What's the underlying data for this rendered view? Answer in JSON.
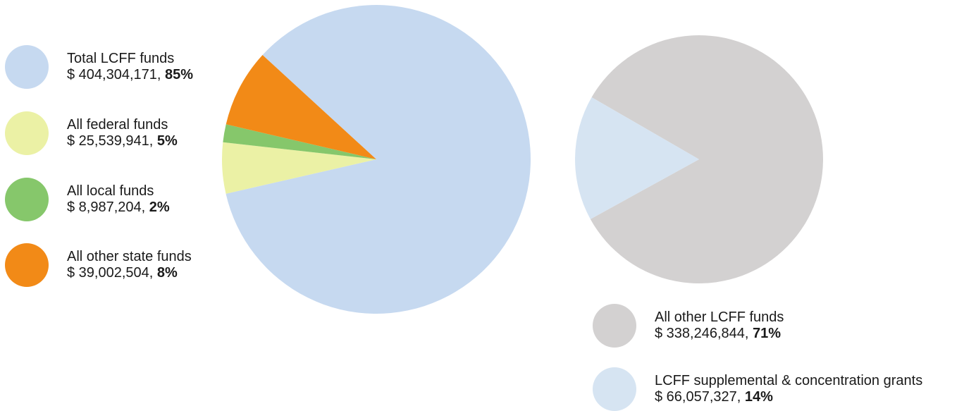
{
  "chart_data": [
    {
      "type": "pie",
      "title": "",
      "slices": [
        {
          "label": "Total LCFF funds",
          "amount": "$ 404,304,171",
          "percent": "85%",
          "value": 404304171,
          "color": "#c6d9f0"
        },
        {
          "label": "All federal funds",
          "amount": "$ 25,539,941",
          "percent": "5%",
          "value": 25539941,
          "color": "#ebf1a5"
        },
        {
          "label": "All local funds",
          "amount": "$ 8,987,204",
          "percent": "2%",
          "value": 8987204,
          "color": "#86c76b"
        },
        {
          "label": "All other state funds",
          "amount": "$ 39,002,504",
          "percent": "8%",
          "value": 39002504,
          "color": "#f28a17"
        }
      ],
      "legend": "left"
    },
    {
      "type": "pie",
      "title": "",
      "slices": [
        {
          "label": "All other LCFF funds",
          "amount": "$ 338,246,844",
          "percent": "71%",
          "value": 338246844,
          "color": "#d3d1d1"
        },
        {
          "label": "LCFF supplemental & concentration grants",
          "amount": "$ 66,057,327",
          "percent": "14%",
          "value": 66057327,
          "color": "#d6e4f2"
        }
      ],
      "legend": "bottom"
    }
  ]
}
